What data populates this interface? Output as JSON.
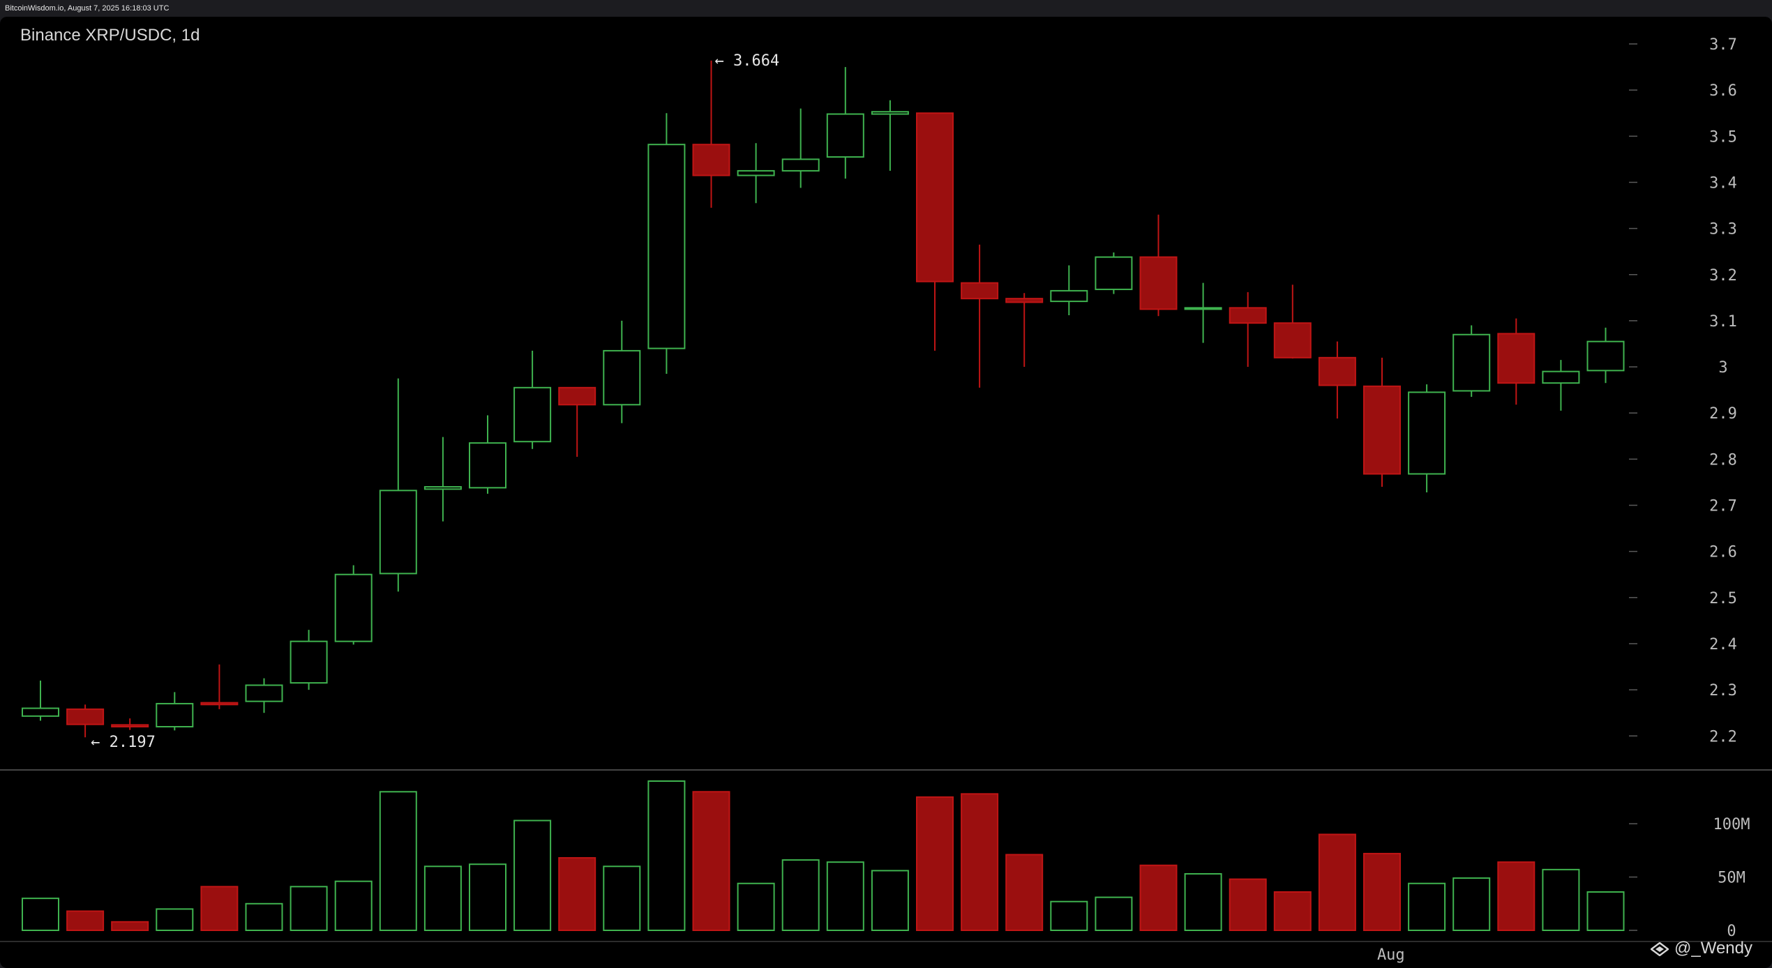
{
  "header": {
    "source": "BitcoinWisdom.io, August 7, 2025 16:18:03 UTC"
  },
  "chart_title": "Binance XRP/USDC, 1d",
  "watermark": {
    "icon": "diamond-logo-icon",
    "text": "@_Wendy"
  },
  "colors": {
    "up": "#3fb34f",
    "down": "#9b0f0f",
    "down_edge": "#c01515",
    "grid_line": "#5a5a5a"
  },
  "chart_data": {
    "type": "candlestick",
    "title": "Binance XRP/USDC, 1d",
    "interval": "1d",
    "y_ticks": [
      "3.7",
      "3.6",
      "3.5",
      "3.4",
      "3.3",
      "3.2",
      "3.1",
      "3",
      "2.9",
      "2.8",
      "2.7",
      "2.6",
      "2.5",
      "2.4",
      "2.3",
      "2.2"
    ],
    "ylim": [
      2.15,
      3.72
    ],
    "volume_ticks": [
      "100M",
      "50M",
      "0"
    ],
    "volume_ylim": [
      0,
      140
    ],
    "x_labels": [
      {
        "label": "Aug",
        "index": 30.2
      }
    ],
    "annotations": {
      "high": "← 3.664",
      "low": "← 2.197",
      "high_value": 3.664,
      "low_value": 2.197,
      "high_index": 15,
      "low_index": 1
    },
    "candles": [
      {
        "o": 2.243,
        "h": 2.32,
        "l": 2.233,
        "c": 2.26,
        "v": 30
      },
      {
        "o": 2.258,
        "h": 2.268,
        "l": 2.197,
        "c": 2.225,
        "v": 18
      },
      {
        "o": 2.224,
        "h": 2.238,
        "l": 2.213,
        "c": 2.22,
        "v": 8
      },
      {
        "o": 2.22,
        "h": 2.295,
        "l": 2.212,
        "c": 2.27,
        "v": 20
      },
      {
        "o": 2.272,
        "h": 2.355,
        "l": 2.258,
        "c": 2.268,
        "v": 41
      },
      {
        "o": 2.275,
        "h": 2.325,
        "l": 2.25,
        "c": 2.31,
        "v": 25
      },
      {
        "o": 2.315,
        "h": 2.43,
        "l": 2.3,
        "c": 2.405,
        "v": 41
      },
      {
        "o": 2.405,
        "h": 2.57,
        "l": 2.398,
        "c": 2.55,
        "v": 46
      },
      {
        "o": 2.552,
        "h": 2.975,
        "l": 2.513,
        "c": 2.732,
        "v": 130
      },
      {
        "o": 2.735,
        "h": 2.848,
        "l": 2.665,
        "c": 2.74,
        "v": 60
      },
      {
        "o": 2.738,
        "h": 2.895,
        "l": 2.725,
        "c": 2.835,
        "v": 62
      },
      {
        "o": 2.838,
        "h": 3.035,
        "l": 2.822,
        "c": 2.955,
        "v": 103
      },
      {
        "o": 2.955,
        "h": 2.955,
        "l": 2.805,
        "c": 2.918,
        "v": 68
      },
      {
        "o": 2.918,
        "h": 3.1,
        "l": 2.878,
        "c": 3.035,
        "v": 60
      },
      {
        "o": 3.04,
        "h": 3.55,
        "l": 2.985,
        "c": 3.482,
        "v": 140
      },
      {
        "o": 3.482,
        "h": 3.664,
        "l": 3.345,
        "c": 3.415,
        "v": 130
      },
      {
        "o": 3.415,
        "h": 3.485,
        "l": 3.355,
        "c": 3.425,
        "v": 44
      },
      {
        "o": 3.425,
        "h": 3.56,
        "l": 3.388,
        "c": 3.45,
        "v": 66
      },
      {
        "o": 3.455,
        "h": 3.65,
        "l": 3.408,
        "c": 3.548,
        "v": 64
      },
      {
        "o": 3.548,
        "h": 3.578,
        "l": 3.425,
        "c": 3.553,
        "v": 56
      },
      {
        "o": 3.55,
        "h": 3.55,
        "l": 3.035,
        "c": 3.185,
        "v": 125
      },
      {
        "o": 3.182,
        "h": 3.265,
        "l": 2.955,
        "c": 3.148,
        "v": 128
      },
      {
        "o": 3.148,
        "h": 3.16,
        "l": 3.0,
        "c": 3.14,
        "v": 71
      },
      {
        "o": 3.142,
        "h": 3.22,
        "l": 3.112,
        "c": 3.165,
        "v": 27
      },
      {
        "o": 3.168,
        "h": 3.248,
        "l": 3.158,
        "c": 3.238,
        "v": 31
      },
      {
        "o": 3.238,
        "h": 3.33,
        "l": 3.11,
        "c": 3.125,
        "v": 61
      },
      {
        "o": 3.125,
        "h": 3.182,
        "l": 3.052,
        "c": 3.128,
        "v": 53
      },
      {
        "o": 3.128,
        "h": 3.162,
        "l": 3.0,
        "c": 3.095,
        "v": 48
      },
      {
        "o": 3.095,
        "h": 3.178,
        "l": 3.018,
        "c": 3.02,
        "v": 36
      },
      {
        "o": 3.02,
        "h": 3.055,
        "l": 2.888,
        "c": 2.96,
        "v": 90
      },
      {
        "o": 2.958,
        "h": 3.02,
        "l": 2.74,
        "c": 2.768,
        "v": 72
      },
      {
        "o": 2.768,
        "h": 2.962,
        "l": 2.728,
        "c": 2.945,
        "v": 44
      },
      {
        "o": 2.948,
        "h": 3.09,
        "l": 2.935,
        "c": 3.07,
        "v": 49
      },
      {
        "o": 3.072,
        "h": 3.105,
        "l": 2.918,
        "c": 2.965,
        "v": 64
      },
      {
        "o": 2.965,
        "h": 3.015,
        "l": 2.905,
        "c": 2.99,
        "v": 57
      },
      {
        "o": 2.992,
        "h": 3.085,
        "l": 2.965,
        "c": 3.055,
        "v": 36
      }
    ]
  }
}
